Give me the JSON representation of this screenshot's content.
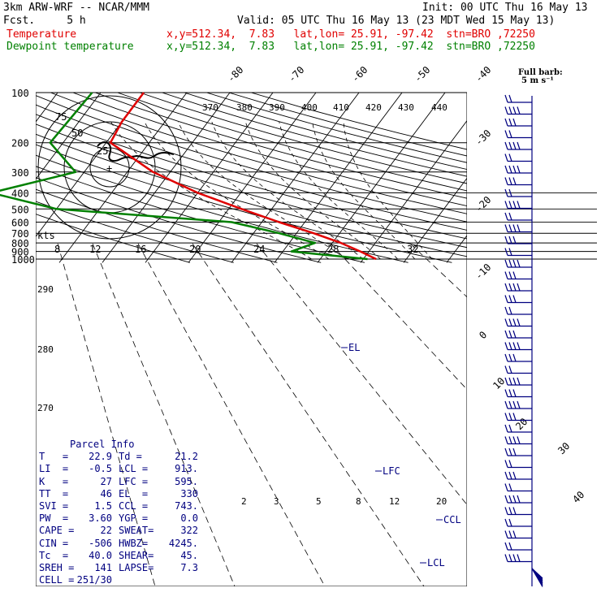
{
  "header": {
    "model": "3km ARW-WRF -- NCAR/MMM",
    "init": "Init: 00 UTC Thu 16 May 13",
    "fcst": "Fcst.     5 h",
    "valid": "Valid: 05 UTC Thu 16 May 13 (23 MDT Wed 15 May 13)",
    "temp_label": "Temperature",
    "temp_info": "x,y=512.34,  7.83   lat,lon= 25.91, -97.42  stn=BRO ,72250",
    "dew_label": "Dewpoint temperature",
    "dew_info": "x,y=512.34,  7.83   lat,lon= 25.91, -97.42  stn=BRO ,72250"
  },
  "barb_legend": {
    "line1": "Full barb:",
    "line2": "5 m s⁻¹"
  },
  "hodograph": {
    "ring_labels": [
      "75",
      "50",
      "25"
    ],
    "units": "kts"
  },
  "mixing_ratio_labels": [
    "8",
    "12",
    "16",
    "20",
    "24",
    "28",
    "32"
  ],
  "theta_labels": [
    "370",
    "380",
    "390",
    "400",
    "410",
    "420",
    "430",
    "440"
  ],
  "theta_left_labels": [
    "290",
    "280",
    "270"
  ],
  "low_mixing_labels": [
    "2",
    "3",
    "5",
    "8",
    "12",
    "20"
  ],
  "annotations": {
    "el": "EL",
    "lfc": "LFC",
    "ccl": "CCL",
    "lcl": "LCL"
  },
  "parcel_info": {
    "title": "Parcel Info",
    "rows": [
      [
        "T   =",
        "22.9",
        "Td =",
        "21.2"
      ],
      [
        "LI  =",
        "-0.5",
        "LCL =",
        "913."
      ],
      [
        "K   =",
        "27",
        "LFC =",
        "595."
      ],
      [
        "TT  =",
        "46",
        "EL  =",
        "330"
      ],
      [
        "SVI =",
        "1.5",
        "CCL =",
        "743."
      ],
      [
        "PW  =",
        "3.60",
        "YGP =",
        "0.0"
      ],
      [
        "CAPE =",
        "22",
        "SWEAT=",
        "322"
      ],
      [
        "CIN =",
        "-506",
        "HWBZ=",
        "4245."
      ],
      [
        "Tc  =",
        "40.0",
        "SHEAR=",
        "45."
      ],
      [
        "SREH =",
        "141",
        "LAPSE=",
        "7.3"
      ],
      [
        "CELL =",
        "251/30",
        "",
        ""
      ]
    ]
  },
  "chart_data": {
    "type": "line",
    "pressure_levels": [
      100,
      200,
      300,
      400,
      500,
      600,
      700,
      800,
      900,
      1000
    ],
    "isotherm_labels_top": [
      "-80",
      "-70",
      "-60",
      "-50",
      "-40"
    ],
    "isotherm_labels_right": [
      "-30",
      "-20",
      "-10",
      "0",
      "10",
      "20",
      "30",
      "40"
    ],
    "colors": {
      "temperature": "#e00000",
      "dewpoint": "#008000",
      "barbs": "#000080"
    },
    "series": [
      {
        "name": "Temperature",
        "points": [
          [
            -60,
            100
          ],
          [
            -60,
            150
          ],
          [
            -59,
            200
          ],
          [
            -44,
            300
          ],
          [
            -30,
            400
          ],
          [
            -17,
            500
          ],
          [
            -6,
            600
          ],
          [
            4,
            700
          ],
          [
            12,
            800
          ],
          [
            18,
            900
          ],
          [
            23,
            1000
          ]
        ]
      },
      {
        "name": "Dewpoint temperature",
        "points": [
          [
            -72,
            100
          ],
          [
            -73,
            200
          ],
          [
            -62,
            300
          ],
          [
            -78,
            400
          ],
          [
            -60,
            500
          ],
          [
            -17,
            600
          ],
          [
            -4,
            700
          ],
          [
            6,
            800
          ],
          [
            2,
            900
          ],
          [
            21,
            1000
          ]
        ]
      }
    ]
  }
}
